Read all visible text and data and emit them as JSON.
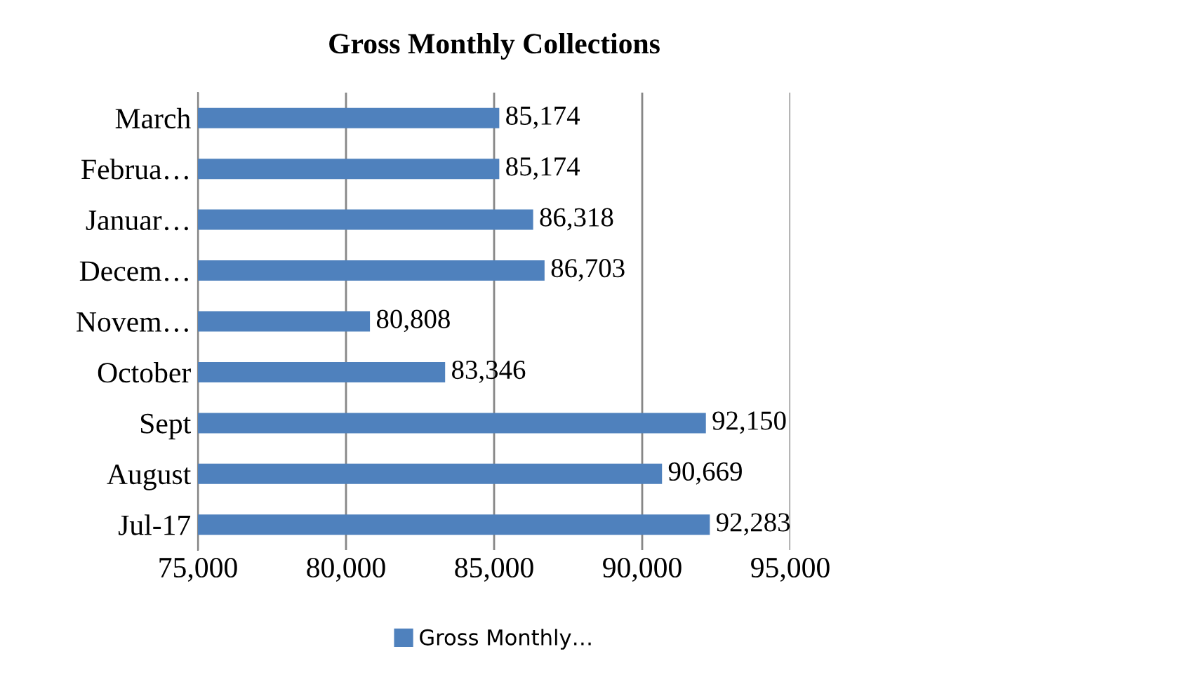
{
  "chart_data": {
    "type": "bar",
    "orientation": "horizontal",
    "title": "Gross Monthly Collections",
    "categories": [
      "March",
      "Februa…",
      "Januar…",
      "Decem…",
      "Novem…",
      "October",
      "Sept",
      "August",
      "Jul-17"
    ],
    "series": [
      {
        "name": "Gross Monthly…",
        "color": "#4f81bd",
        "values": [
          85174,
          85174,
          86318,
          86703,
          80808,
          83346,
          92150,
          90669,
          92283
        ],
        "value_labels": [
          "85,174",
          "85,174",
          "86,318",
          "86,703",
          "80,808",
          "83,346",
          "92,150",
          "90,669",
          "92,283"
        ]
      }
    ],
    "xlim": [
      75000,
      95000
    ],
    "xticks": [
      {
        "value": 75000,
        "label": "75,000"
      },
      {
        "value": 80000,
        "label": "80,000"
      },
      {
        "value": 85000,
        "label": "85,000"
      },
      {
        "value": 90000,
        "label": "90,000"
      },
      {
        "value": 95000,
        "label": "95,000"
      }
    ],
    "grid": "x",
    "legend": "bottom"
  }
}
